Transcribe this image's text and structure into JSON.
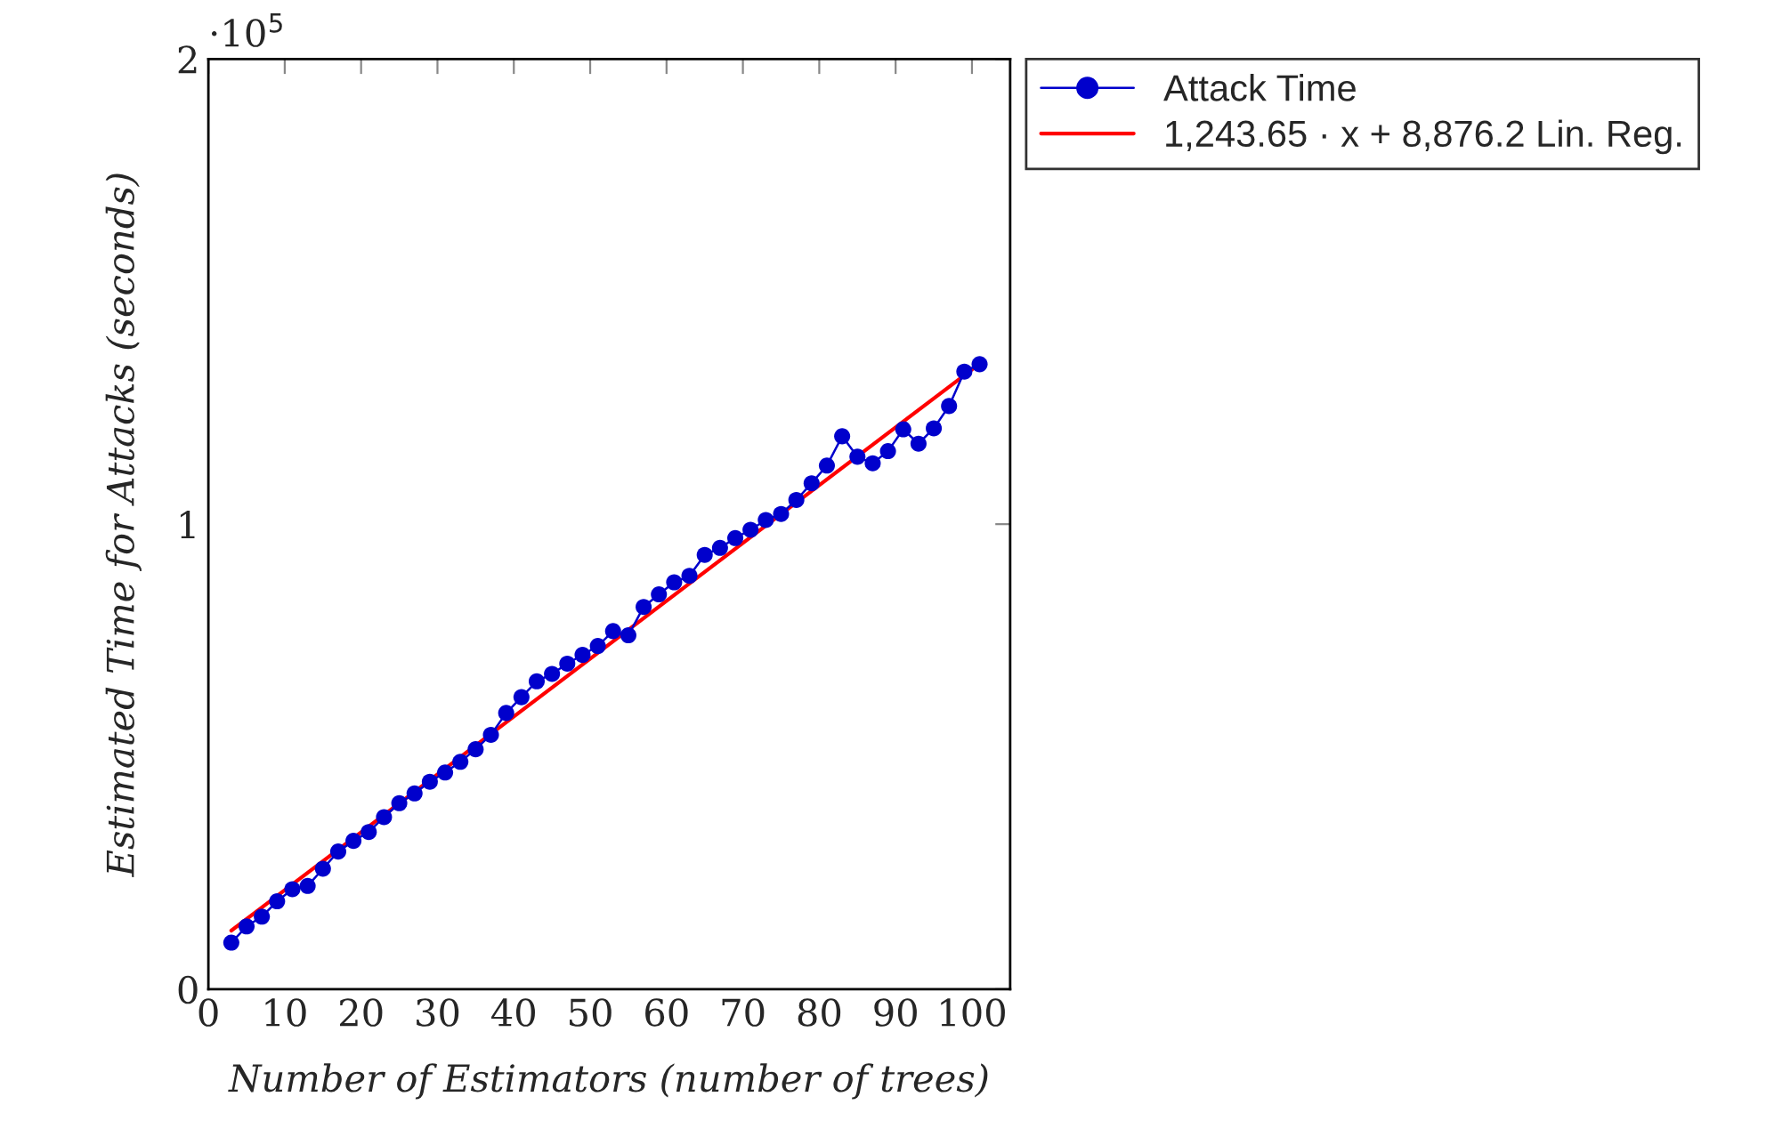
{
  "chart_data": {
    "type": "line",
    "xlabel": "Number of Estimators (number of trees)",
    "ylabel": "Estimated Time for Attacks (seconds)",
    "annotations": [
      "·10$^{5}$"
    ],
    "x": [
      3,
      5,
      7,
      9,
      11,
      13,
      15,
      17,
      19,
      21,
      23,
      25,
      27,
      29,
      31,
      33,
      35,
      37,
      39,
      41,
      43,
      45,
      47,
      49,
      51,
      53,
      55,
      57,
      59,
      61,
      63,
      65,
      67,
      69,
      71,
      73,
      75,
      77,
      79,
      81,
      83,
      85,
      87,
      89,
      91,
      93,
      95,
      97,
      99,
      101
    ],
    "series": [
      {
        "name": "Attack Time",
        "color": "#0000cc",
        "marker": "circle",
        "line_style": "solid",
        "values": [
          0.1,
          0.135,
          0.156,
          0.189,
          0.215,
          0.222,
          0.259,
          0.296,
          0.319,
          0.338,
          0.37,
          0.4,
          0.421,
          0.446,
          0.466,
          0.489,
          0.516,
          0.547,
          0.594,
          0.628,
          0.662,
          0.678,
          0.7,
          0.719,
          0.738,
          0.77,
          0.761,
          0.822,
          0.849,
          0.875,
          0.889,
          0.934,
          0.949,
          0.97,
          0.988,
          1.009,
          1.022,
          1.052,
          1.088,
          1.126,
          1.189,
          1.145,
          1.131,
          1.157,
          1.204,
          1.173,
          1.206,
          1.254,
          1.328,
          1.344
        ]
      },
      {
        "name": "1,243.65 · x + 8,876.2 Lin. Reg.",
        "color": "#ff0000",
        "marker": "none",
        "line_style": "solid",
        "x": [
          3,
          101
        ],
        "values": [
          0.126,
          1.345
        ]
      }
    ],
    "xlim": [
      0,
      105
    ],
    "xticks": [
      0,
      10,
      20,
      30,
      40,
      50,
      60,
      70,
      80,
      90,
      100
    ],
    "ylim": [
      0,
      2
    ],
    "yticks": [
      0,
      1,
      2
    ],
    "grid": false,
    "legend": "top right"
  }
}
